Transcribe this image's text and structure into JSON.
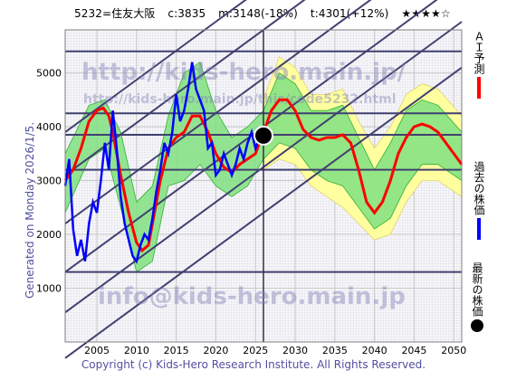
{
  "header": {
    "code": "5232=住友大阪",
    "c": "c:3835",
    "m": "m:3148(-18%)",
    "t": "t:4301(+12%)",
    "stars": "★★★★☆"
  },
  "side_text": "Generated on Monday 2026/1/5.",
  "footer": "Copyright (c) Kids-Hero Research Institute. All Rights Reserved.",
  "watermarks": {
    "url": "http://kids-hero.main.jp/",
    "url2": "http://kids-hero.main.jp/this/code5232.html",
    "mail": "info@kids-hero.main.jp"
  },
  "legend": {
    "ai": "ＡＩ予測",
    "past": "過去の株価",
    "latest": "最新の株価"
  },
  "colors": {
    "prediction": "#ff0000",
    "history": "#0000ff",
    "band_green": "#80e080",
    "band_yellow": "#ffffa0",
    "trend": "#404070",
    "grid": "#c8c8c8"
  },
  "chart_data": {
    "type": "line",
    "xlim": [
      2001,
      2051
    ],
    "ylim": [
      0,
      5800
    ],
    "x_ticks": [
      2005,
      2010,
      2015,
      2020,
      2025,
      2030,
      2035,
      2040,
      2045,
      2050
    ],
    "y_ticks": [
      1000,
      2000,
      3000,
      4000,
      5000
    ],
    "latest_point": {
      "x": 2026.0,
      "y": 3835
    },
    "history": [
      [
        2001.0,
        2900
      ],
      [
        2001.5,
        3400
      ],
      [
        2002.0,
        2100
      ],
      [
        2002.5,
        1600
      ],
      [
        2003.0,
        1900
      ],
      [
        2003.5,
        1500
      ],
      [
        2004.0,
        2200
      ],
      [
        2004.5,
        2600
      ],
      [
        2005.0,
        2400
      ],
      [
        2005.5,
        3000
      ],
      [
        2006.0,
        3700
      ],
      [
        2006.5,
        3200
      ],
      [
        2007.0,
        4300
      ],
      [
        2007.5,
        3600
      ],
      [
        2008.0,
        2700
      ],
      [
        2008.5,
        2200
      ],
      [
        2009.0,
        1900
      ],
      [
        2009.5,
        1600
      ],
      [
        2010.0,
        1500
      ],
      [
        2010.5,
        1800
      ],
      [
        2011.0,
        2000
      ],
      [
        2011.5,
        1900
      ],
      [
        2012.0,
        2300
      ],
      [
        2012.5,
        2800
      ],
      [
        2013.0,
        3200
      ],
      [
        2013.5,
        3700
      ],
      [
        2014.0,
        3500
      ],
      [
        2014.5,
        3900
      ],
      [
        2015.0,
        4600
      ],
      [
        2015.5,
        4100
      ],
      [
        2016.0,
        4300
      ],
      [
        2016.5,
        4700
      ],
      [
        2017.0,
        5200
      ],
      [
        2017.5,
        4700
      ],
      [
        2018.0,
        4500
      ],
      [
        2018.5,
        4300
      ],
      [
        2019.0,
        3600
      ],
      [
        2019.5,
        3700
      ],
      [
        2020.0,
        3100
      ],
      [
        2020.5,
        3200
      ],
      [
        2021.0,
        3500
      ],
      [
        2021.5,
        3300
      ],
      [
        2022.0,
        3100
      ],
      [
        2022.5,
        3300
      ],
      [
        2023.0,
        3600
      ],
      [
        2023.5,
        3400
      ],
      [
        2024.0,
        3700
      ],
      [
        2024.5,
        3900
      ],
      [
        2025.0,
        3600
      ],
      [
        2025.5,
        3800
      ],
      [
        2026.0,
        3835
      ]
    ],
    "prediction": [
      [
        2001.0,
        3000
      ],
      [
        2002.0,
        3200
      ],
      [
        2003.0,
        3600
      ],
      [
        2004.0,
        4100
      ],
      [
        2005.0,
        4300
      ],
      [
        2005.8,
        4350
      ],
      [
        2006.5,
        4200
      ],
      [
        2007.0,
        3900
      ],
      [
        2008.0,
        3100
      ],
      [
        2009.0,
        2400
      ],
      [
        2010.0,
        1850
      ],
      [
        2010.7,
        1700
      ],
      [
        2011.5,
        1800
      ],
      [
        2012.0,
        2200
      ],
      [
        2013.0,
        3000
      ],
      [
        2014.0,
        3600
      ],
      [
        2015.0,
        3800
      ],
      [
        2016.0,
        3900
      ],
      [
        2017.0,
        4200
      ],
      [
        2018.0,
        4200
      ],
      [
        2019.0,
        3900
      ],
      [
        2020.0,
        3500
      ],
      [
        2021.0,
        3250
      ],
      [
        2022.0,
        3150
      ],
      [
        2023.0,
        3300
      ],
      [
        2024.0,
        3400
      ],
      [
        2025.0,
        3500
      ],
      [
        2026.0,
        3900
      ],
      [
        2027.0,
        4300
      ],
      [
        2028.0,
        4500
      ],
      [
        2029.0,
        4500
      ],
      [
        2030.0,
        4300
      ],
      [
        2031.0,
        3950
      ],
      [
        2032.0,
        3800
      ],
      [
        2033.0,
        3750
      ],
      [
        2034.0,
        3800
      ],
      [
        2035.0,
        3800
      ],
      [
        2036.0,
        3850
      ],
      [
        2037.0,
        3700
      ],
      [
        2038.0,
        3200
      ],
      [
        2039.0,
        2600
      ],
      [
        2040.0,
        2400
      ],
      [
        2041.0,
        2600
      ],
      [
        2042.0,
        3000
      ],
      [
        2043.0,
        3500
      ],
      [
        2044.0,
        3800
      ],
      [
        2045.0,
        4000
      ],
      [
        2046.0,
        4050
      ],
      [
        2047.0,
        4000
      ],
      [
        2048.0,
        3900
      ],
      [
        2049.0,
        3700
      ],
      [
        2050.0,
        3500
      ],
      [
        2051.0,
        3300
      ]
    ],
    "band_green_upper": [
      [
        2001.0,
        3500
      ],
      [
        2004.0,
        4400
      ],
      [
        2006.0,
        4500
      ],
      [
        2008.0,
        3900
      ],
      [
        2010.0,
        2600
      ],
      [
        2012.0,
        2900
      ],
      [
        2014.0,
        4200
      ],
      [
        2016.0,
        5000
      ],
      [
        2018.0,
        5200
      ],
      [
        2020.0,
        4300
      ],
      [
        2022.0,
        3800
      ],
      [
        2024.0,
        4000
      ],
      [
        2026.0,
        4300
      ],
      [
        2028.0,
        5000
      ],
      [
        2030.0,
        4800
      ],
      [
        2032.0,
        4300
      ],
      [
        2034.0,
        4300
      ],
      [
        2036.0,
        4400
      ],
      [
        2038.0,
        3800
      ],
      [
        2040.0,
        3200
      ],
      [
        2042.0,
        3700
      ],
      [
        2044.0,
        4300
      ],
      [
        2046.0,
        4500
      ],
      [
        2048.0,
        4400
      ],
      [
        2051.0,
        3900
      ]
    ],
    "band_green_lower": [
      [
        2001.0,
        2400
      ],
      [
        2004.0,
        3400
      ],
      [
        2006.0,
        3600
      ],
      [
        2008.0,
        2500
      ],
      [
        2010.0,
        1300
      ],
      [
        2012.0,
        1500
      ],
      [
        2014.0,
        2900
      ],
      [
        2016.0,
        3000
      ],
      [
        2018.0,
        3300
      ],
      [
        2020.0,
        2900
      ],
      [
        2022.0,
        2700
      ],
      [
        2024.0,
        2900
      ],
      [
        2026.0,
        3400
      ],
      [
        2028.0,
        3700
      ],
      [
        2030.0,
        3600
      ],
      [
        2032.0,
        3200
      ],
      [
        2034.0,
        3000
      ],
      [
        2036.0,
        2900
      ],
      [
        2038.0,
        2500
      ],
      [
        2040.0,
        2100
      ],
      [
        2042.0,
        2300
      ],
      [
        2044.0,
        2900
      ],
      [
        2046.0,
        3300
      ],
      [
        2048.0,
        3300
      ],
      [
        2051.0,
        3000
      ]
    ],
    "band_yellow_upper": [
      [
        2026.0,
        4500
      ],
      [
        2028.0,
        5300
      ],
      [
        2030.0,
        5100
      ],
      [
        2032.0,
        4600
      ],
      [
        2034.0,
        4600
      ],
      [
        2036.0,
        4700
      ],
      [
        2038.0,
        4100
      ],
      [
        2040.0,
        3600
      ],
      [
        2042.0,
        4000
      ],
      [
        2044.0,
        4600
      ],
      [
        2046.0,
        4800
      ],
      [
        2048.0,
        4700
      ],
      [
        2051.0,
        4200
      ]
    ],
    "band_yellow_lower": [
      [
        2026.0,
        3200
      ],
      [
        2028.0,
        3400
      ],
      [
        2030.0,
        3300
      ],
      [
        2032.0,
        2900
      ],
      [
        2034.0,
        2700
      ],
      [
        2036.0,
        2500
      ],
      [
        2038.0,
        2200
      ],
      [
        2040.0,
        1900
      ],
      [
        2042.0,
        2000
      ],
      [
        2044.0,
        2600
      ],
      [
        2046.0,
        3000
      ],
      [
        2048.0,
        3000
      ],
      [
        2051.0,
        2700
      ]
    ],
    "trend_lines": [
      {
        "x1": 2001,
        "y1": 2200,
        "x2": 2051,
        "y2": 7600
      },
      {
        "x1": 2001,
        "y1": 3100,
        "x2": 2051,
        "y2": 8500
      },
      {
        "x1": 2001,
        "y1": 3900,
        "x2": 2051,
        "y2": 9300
      },
      {
        "x1": 2001,
        "y1": 1300,
        "x2": 2051,
        "y2": 6700
      },
      {
        "x1": 2001,
        "y1": 550,
        "x2": 2051,
        "y2": 5950
      },
      {
        "x1": 2001,
        "y1": -300,
        "x2": 2051,
        "y2": 5100
      }
    ],
    "horizontal_levels": [
      5400,
      4250,
      3850,
      3200,
      1300
    ]
  }
}
